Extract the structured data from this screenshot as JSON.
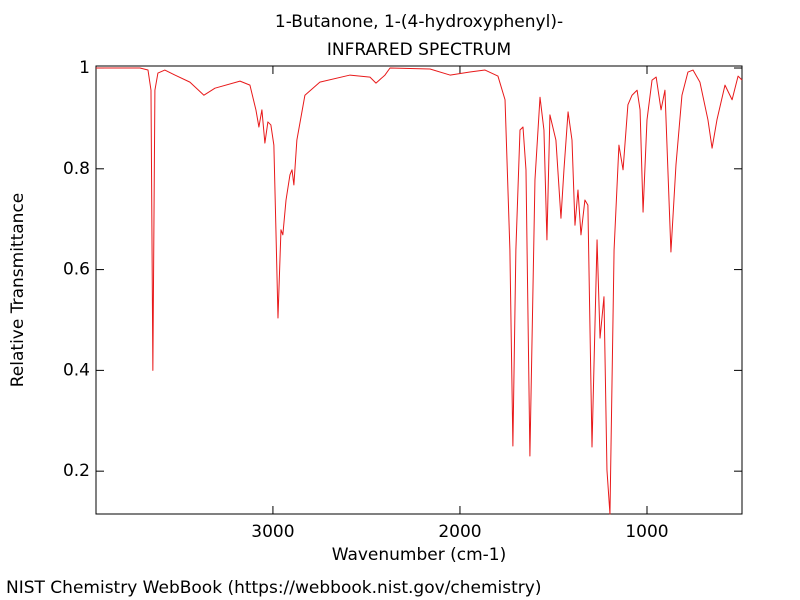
{
  "chart_data": {
    "type": "line",
    "title": "1-Butanone, 1-(4-hydroxyphenyl)-",
    "subtitle": "INFRARED SPECTRUM",
    "x_label": "Wavenumber (cm-1)",
    "y_label": "Relative Transmittance",
    "source": "NIST Chemistry WebBook (https://webbook.nist.gov/chemistry)",
    "color": "#e8191a",
    "x": [
      3946,
      3711,
      3668,
      3652,
      3642,
      3631,
      3615,
      3578,
      3524,
      3444,
      3369,
      3310,
      3176,
      3123,
      3091,
      3075,
      3059,
      3043,
      3027,
      3011,
      2995,
      2984,
      2973,
      2957,
      2947,
      2930,
      2909,
      2898,
      2888,
      2872,
      2829,
      2749,
      2588,
      2481,
      2449,
      2401,
      2374,
      2160,
      2053,
      1947,
      1866,
      1797,
      1759,
      1733,
      1717,
      1701,
      1679,
      1663,
      1647,
      1626,
      1599,
      1572,
      1551,
      1535,
      1519,
      1487,
      1460,
      1444,
      1422,
      1401,
      1385,
      1369,
      1353,
      1332,
      1316,
      1294,
      1267,
      1251,
      1230,
      1214,
      1198,
      1176,
      1150,
      1128,
      1102,
      1080,
      1053,
      1037,
      1021,
      1000,
      973,
      951,
      925,
      904,
      872,
      845,
      813,
      781,
      754,
      717,
      674,
      652,
      626,
      583,
      545,
      513,
      492
    ],
    "values": [
      1.0,
      1.0,
      0.996,
      0.956,
      0.4,
      0.956,
      0.99,
      0.996,
      0.986,
      0.972,
      0.946,
      0.96,
      0.974,
      0.966,
      0.917,
      0.883,
      0.917,
      0.851,
      0.893,
      0.887,
      0.847,
      0.679,
      0.504,
      0.679,
      0.669,
      0.738,
      0.788,
      0.798,
      0.768,
      0.857,
      0.946,
      0.972,
      0.986,
      0.982,
      0.97,
      0.986,
      1.0,
      0.998,
      0.986,
      0.992,
      0.996,
      0.984,
      0.937,
      0.639,
      0.25,
      0.639,
      0.877,
      0.883,
      0.798,
      0.23,
      0.778,
      0.942,
      0.877,
      0.659,
      0.907,
      0.857,
      0.702,
      0.798,
      0.913,
      0.857,
      0.688,
      0.758,
      0.669,
      0.738,
      0.728,
      0.248,
      0.659,
      0.464,
      0.546,
      0.202,
      0.115,
      0.639,
      0.847,
      0.798,
      0.927,
      0.946,
      0.956,
      0.917,
      0.714,
      0.897,
      0.976,
      0.982,
      0.917,
      0.956,
      0.635,
      0.808,
      0.946,
      0.992,
      0.996,
      0.972,
      0.897,
      0.841,
      0.897,
      0.966,
      0.937,
      0.984,
      0.976
    ],
    "xlim": [
      3946,
      492
    ],
    "ylim": [
      0.115,
      1.004
    ],
    "xticks": [
      3000,
      2000,
      1000
    ],
    "yticks": [
      0.2,
      0.4,
      0.6,
      0.8,
      1
    ]
  }
}
